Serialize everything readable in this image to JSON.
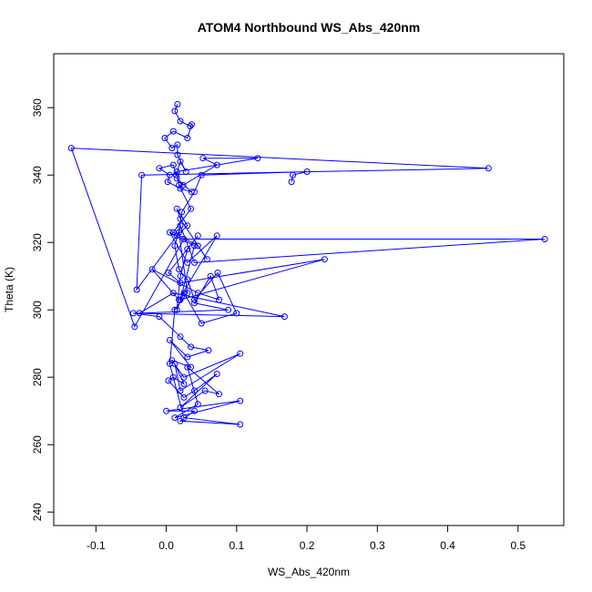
{
  "chart_data": {
    "type": "scatter",
    "title": "ATOM4 Northbound WS_Abs_420nm",
    "xlabel": "WS_Abs_420nm",
    "ylabel": "Theta (K)",
    "xlim": [
      -0.16,
      0.565
    ],
    "ylim": [
      236,
      376
    ],
    "x_ticks": [
      -0.1,
      0.0,
      0.1,
      0.2,
      0.3,
      0.4,
      0.5
    ],
    "x_tick_labels": [
      "-0.1",
      "0.0",
      "0.1",
      "0.2",
      "0.3",
      "0.4",
      "0.5"
    ],
    "y_ticks": [
      240,
      260,
      280,
      300,
      320,
      340,
      360
    ],
    "y_tick_labels": [
      "240",
      "260",
      "280",
      "300",
      "320",
      "340",
      "360"
    ],
    "grid": false,
    "series_color": "#0000ff",
    "marker": "open-circle",
    "connected": true,
    "series": [
      {
        "x": [
          0.016,
          0.012,
          0.02,
          0.034,
          0.036,
          0.03,
          0.01,
          -0.002,
          0.008,
          0.016,
          0.016,
          0.028,
          0.02,
          0.014,
          0.01,
          -0.01,
          0.005,
          0.002,
          0.02,
          0.036,
          0.015,
          0.024,
          0.072,
          0.052,
          0.13,
          0.015,
          0.018,
          0.035,
          0.01,
          0.045,
          0.058,
          0.02,
          0.015,
          0.03,
          0.015,
          -0.042,
          -0.035,
          0.458,
          -0.135,
          -0.045,
          0.025,
          0.538,
          0.04,
          0.02,
          0.012,
          0.018,
          0.03,
          0.04,
          0.073,
          0.1,
          0.05,
          0.025,
          0.015,
          0.02,
          0.03,
          0.045,
          0.003,
          0.02,
          0.225,
          0.02,
          0.04,
          0.005,
          0.03,
          0.072,
          0.018,
          -0.02,
          0.045,
          0.075,
          0.063,
          0.04,
          0.088,
          -0.038,
          0.01,
          0.168,
          -0.047,
          -0.01,
          0.02,
          0.035,
          0.06,
          0.03,
          0.005,
          0.035,
          0.008,
          0.025,
          0.105,
          0.02,
          0.012,
          0.025,
          0.01,
          0.003,
          0.025,
          0.04,
          0.072,
          0.02,
          0.055,
          0.075,
          0.03,
          0.045,
          0.012,
          0.105,
          0.0,
          0.04,
          0.02,
          0.105,
          0.025,
          0.005,
          0.012,
          0.03,
          0.018,
          0.022,
          0.04,
          0.05,
          0.2,
          0.18,
          0.178
        ],
        "y": [
          361,
          359,
          356,
          354.5,
          355,
          351,
          353,
          351,
          348,
          349,
          346,
          341,
          344,
          340,
          343,
          342,
          340,
          338,
          336,
          335,
          339,
          337,
          343,
          345,
          345,
          341,
          337,
          330,
          323,
          319,
          315,
          327,
          330,
          325,
          322,
          306,
          340,
          342,
          348,
          295,
          321,
          321,
          314,
          325,
          319,
          312,
          309,
          303,
          311,
          299,
          296,
          305,
          300,
          310,
          318,
          322,
          311,
          308,
          315,
          303,
          319,
          323,
          314,
          322,
          303,
          312,
          305,
          303,
          310,
          302,
          300,
          299,
          305,
          298,
          299,
          298,
          292,
          289,
          288,
          286,
          291,
          283,
          285,
          280,
          287,
          276,
          284,
          278,
          280,
          279,
          274,
          276,
          281,
          271,
          276,
          275,
          283,
          272,
          268,
          273,
          270,
          270,
          267,
          266,
          268,
          284,
          300,
          305,
          323,
          329,
          335,
          340,
          341,
          340,
          338
        ]
      }
    ]
  }
}
